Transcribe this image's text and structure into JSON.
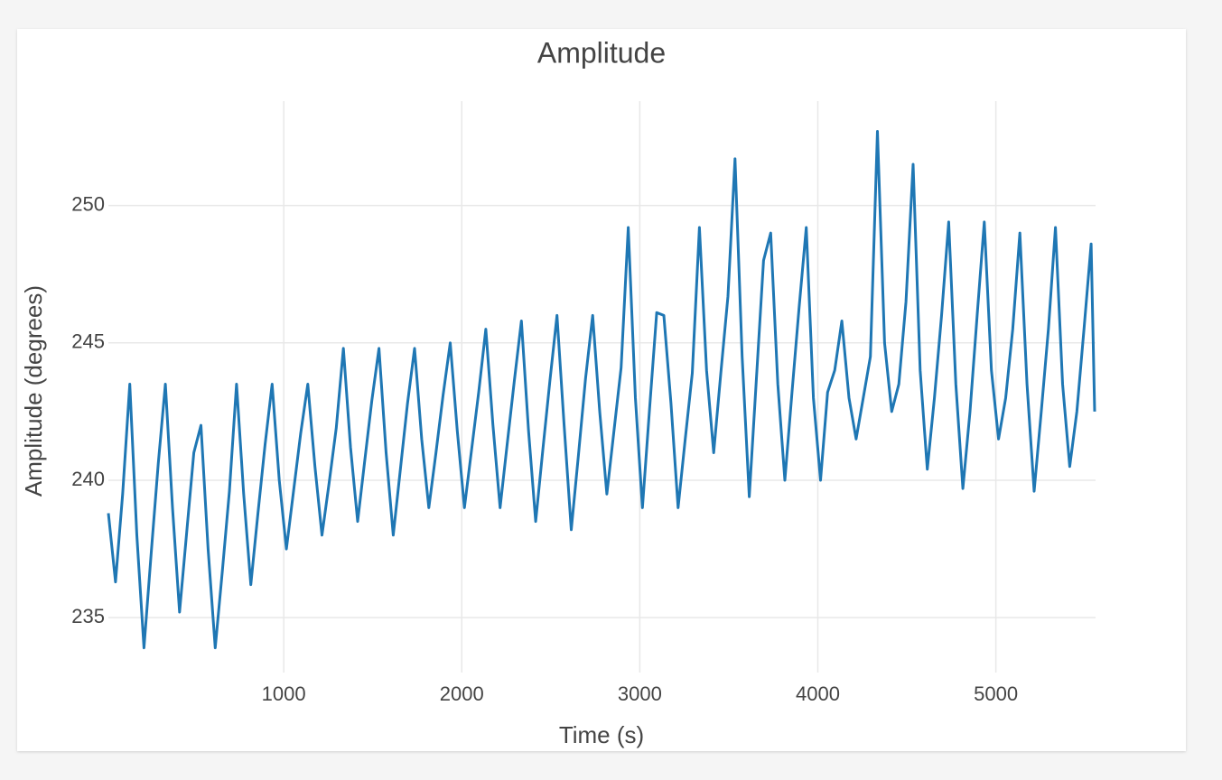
{
  "chart_data": {
    "type": "line",
    "title": "Amplitude",
    "x_label": "Time (s)",
    "y_label": "Amplitude (degrees)",
    "x": [
      15,
      55,
      95,
      135,
      175,
      215,
      255,
      295,
      335,
      375,
      415,
      455,
      495,
      535,
      575,
      615,
      655,
      695,
      735,
      775,
      815,
      855,
      895,
      935,
      975,
      1015,
      1055,
      1095,
      1135,
      1175,
      1215,
      1255,
      1295,
      1335,
      1375,
      1415,
      1455,
      1495,
      1535,
      1575,
      1615,
      1655,
      1695,
      1735,
      1775,
      1815,
      1855,
      1895,
      1935,
      1975,
      2015,
      2055,
      2095,
      2135,
      2175,
      2215,
      2255,
      2295,
      2335,
      2375,
      2415,
      2455,
      2495,
      2535,
      2575,
      2615,
      2655,
      2695,
      2735,
      2775,
      2815,
      2855,
      2895,
      2935,
      2975,
      3015,
      3055,
      3095,
      3135,
      3175,
      3215,
      3255,
      3295,
      3335,
      3375,
      3415,
      3455,
      3495,
      3535,
      3575,
      3615,
      3655,
      3695,
      3735,
      3775,
      3815,
      3855,
      3895,
      3935,
      3975,
      4015,
      4055,
      4095,
      4135,
      4175,
      4215,
      4255,
      4295,
      4335,
      4375,
      4415,
      4455,
      4495,
      4535,
      4575,
      4615,
      4655,
      4695,
      4735,
      4775,
      4815,
      4855,
      4895,
      4935,
      4975,
      5015,
      5055,
      5095,
      5135,
      5175,
      5215,
      5255,
      5295,
      5335,
      5375,
      5415,
      5455,
      5495,
      5535,
      5555
    ],
    "series": [
      {
        "name": "Amplitude",
        "color": "#1f77b4",
        "values": [
          238.8,
          236.3,
          239.5,
          243.5,
          238.0,
          233.9,
          237.3,
          240.6,
          243.5,
          239.0,
          235.2,
          238.1,
          241.0,
          242,
          237.5,
          233.9,
          236.7,
          239.6,
          243.5,
          239.5,
          236.2,
          238.8,
          241.3,
          243.5,
          240.0,
          237.5,
          239.6,
          241.7,
          243.5,
          240.5,
          238,
          239.9,
          241.9,
          244.8,
          241.2,
          238.5,
          240.7,
          242.9,
          244.8,
          241.0,
          238,
          240.4,
          242.8,
          244.8,
          241.5,
          239,
          241.0,
          243.1,
          245,
          241.8,
          239,
          241.1,
          243.2,
          245.5,
          242.0,
          239,
          241.3,
          243.6,
          245.8,
          241.8,
          238.5,
          241.1,
          243.6,
          246,
          242.0,
          238.2,
          240.9,
          243.7,
          246,
          242.5,
          239.5,
          241.8,
          244.1,
          249.2,
          243.0,
          239,
          242.6,
          246.1,
          246,
          242.8,
          239,
          241.5,
          243.9,
          249.2,
          244.0,
          241,
          243.9,
          246.7,
          251.7,
          244.5,
          239.4,
          243.7,
          248.0,
          249,
          243.5,
          240,
          243.2,
          246.3,
          249.2,
          243.0,
          240,
          243.2,
          244.0,
          245.8,
          243.0,
          241.5,
          243.0,
          244.5,
          252.7,
          245.0,
          242.5,
          243.5,
          246.5,
          251.5,
          244.0,
          240.4,
          243.0,
          246.0,
          249.4,
          243.5,
          239.7,
          242.5,
          246.0,
          249.4,
          244.0,
          241.5,
          243.0,
          245.5,
          249,
          243.5,
          239.6,
          242.5,
          245.5,
          249.2,
          243.5,
          240.5,
          242.5,
          245.5,
          248.6,
          242.5
        ]
      }
    ],
    "xlim": [
      15,
      5560
    ],
    "ylim": [
      233.0,
      253.8
    ],
    "xticks": [
      1000,
      2000,
      3000,
      4000,
      5000
    ],
    "yticks": [
      235,
      240,
      245,
      250
    ],
    "grid": true
  }
}
